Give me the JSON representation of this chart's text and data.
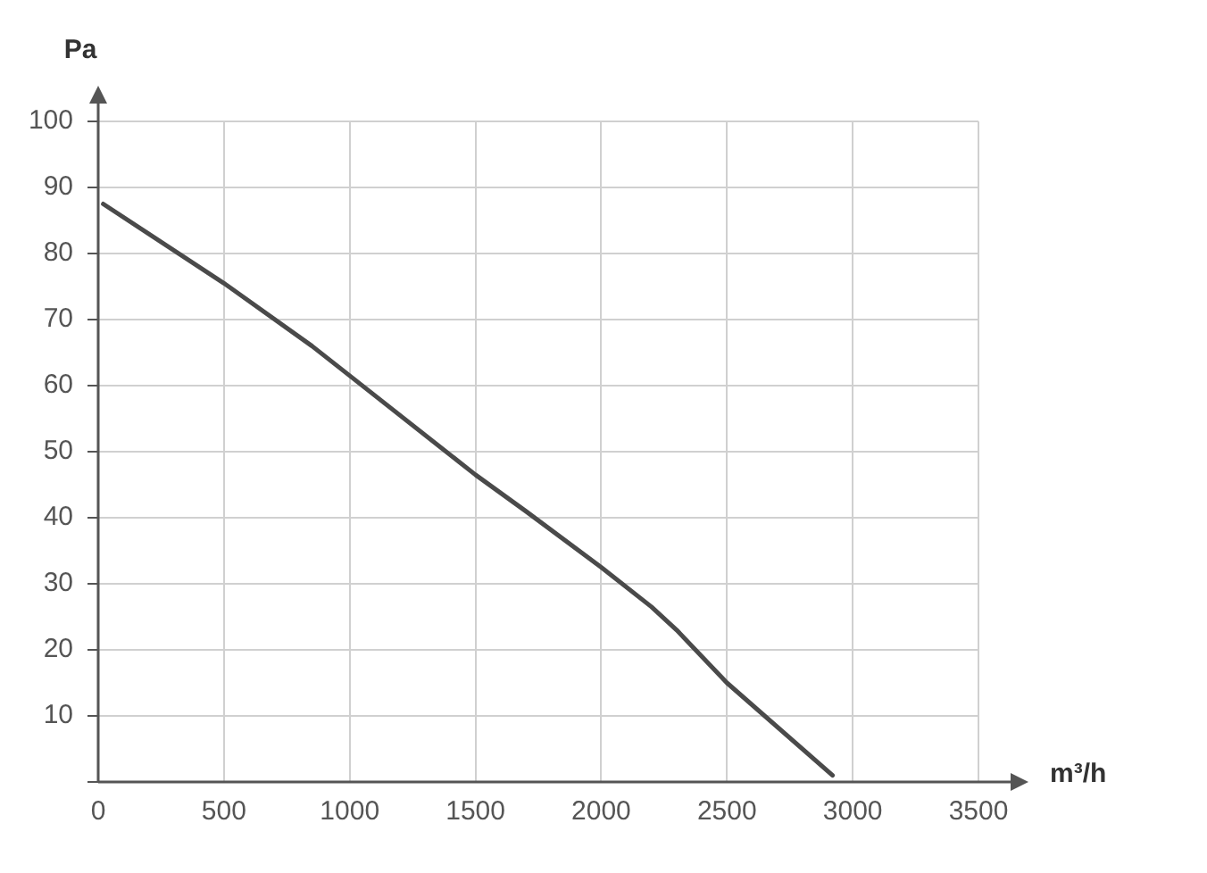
{
  "chart_data": {
    "type": "line",
    "xlabel": "m³/h",
    "ylabel": "Pa",
    "series": [
      {
        "color": "#4a4a4a",
        "x": [
          20,
          500,
          850,
          1000,
          1500,
          1700,
          2000,
          2200,
          2300,
          2500,
          2920
        ],
        "values": [
          87.5,
          75.5,
          66,
          61.5,
          46.5,
          41,
          32.5,
          26.5,
          23,
          15,
          1
        ]
      }
    ],
    "xlim": [
      0,
      3500
    ],
    "xticks": [
      0,
      500,
      1000,
      1500,
      2000,
      2500,
      3000,
      3500
    ],
    "ylim": [
      0,
      100
    ],
    "yticks": [
      {
        "value": 0,
        "label": null
      },
      10,
      20,
      30,
      40,
      50,
      60,
      70,
      80,
      90,
      100
    ],
    "grid": true,
    "legend": false,
    "marker": "none",
    "line_style": "solid"
  }
}
